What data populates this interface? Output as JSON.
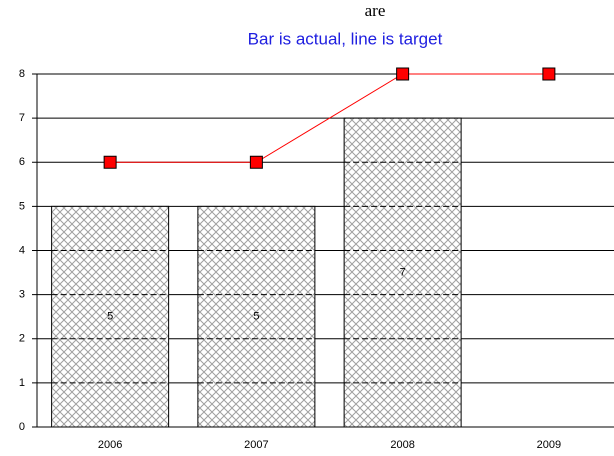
{
  "chart_data": {
    "type": "combo",
    "annotation": "are",
    "title": "Bar is actual, line is target",
    "categories": [
      "2006",
      "2007",
      "2008",
      "2009"
    ],
    "series": [
      {
        "type": "bar",
        "color": "#c0c0c0",
        "values": [
          5,
          5,
          7,
          null
        ]
      },
      {
        "type": "line",
        "color": "#ff0000",
        "values": [
          6,
          6,
          8,
          8
        ]
      }
    ],
    "ylim": [
      0,
      8
    ],
    "yticks": [
      0,
      1,
      2,
      3,
      4,
      5,
      6,
      7,
      8
    ],
    "grid": true
  }
}
